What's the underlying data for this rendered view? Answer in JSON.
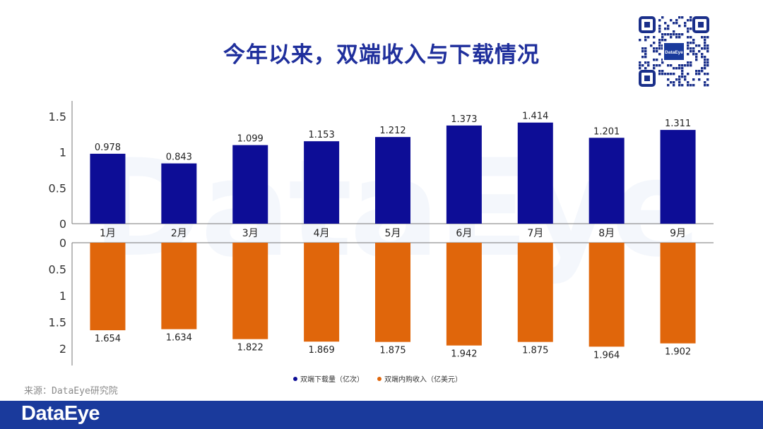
{
  "page": {
    "title": "今年以来，双端收入与下载情况",
    "source": "来源：DataEye研究院",
    "footer_brand": "DataEye",
    "qr_center_label": "DataEye",
    "watermark": "DataEye"
  },
  "colors": {
    "title": "#1f2f9c",
    "downloads": "#0d0d96",
    "revenue": "#e0660b",
    "footer": "#1a3a9c"
  },
  "chart_data": {
    "type": "bar",
    "categories": [
      "1月",
      "2月",
      "3月",
      "4月",
      "5月",
      "6月",
      "7月",
      "8月",
      "9月"
    ],
    "series": [
      {
        "name": "双端下载量（亿次）",
        "values": [
          0.978,
          0.843,
          1.099,
          1.153,
          1.212,
          1.373,
          1.414,
          1.201,
          1.311
        ],
        "labels": [
          "0.978",
          "0.843",
          "1.099",
          "1.153",
          "1.212",
          "1.373",
          "1.414",
          "1.201",
          "1.311"
        ],
        "yticks": [
          "0",
          "0.5",
          "1",
          "1.5"
        ],
        "ylim": [
          0,
          1.5
        ]
      },
      {
        "name": "双端内购收入（亿美元）",
        "values": [
          1.654,
          1.634,
          1.822,
          1.869,
          1.875,
          1.942,
          1.875,
          1.964,
          1.902
        ],
        "labels": [
          "1.654",
          "1.634",
          "1.822",
          "1.869",
          "1.875",
          "1.942",
          "1.875",
          "1.964",
          "1.902"
        ],
        "yticks": [
          "0",
          "0.5",
          "1",
          "1.5",
          "2"
        ],
        "ylim": [
          0,
          2
        ],
        "inverted": true
      }
    ],
    "legend_position": "bottom"
  }
}
